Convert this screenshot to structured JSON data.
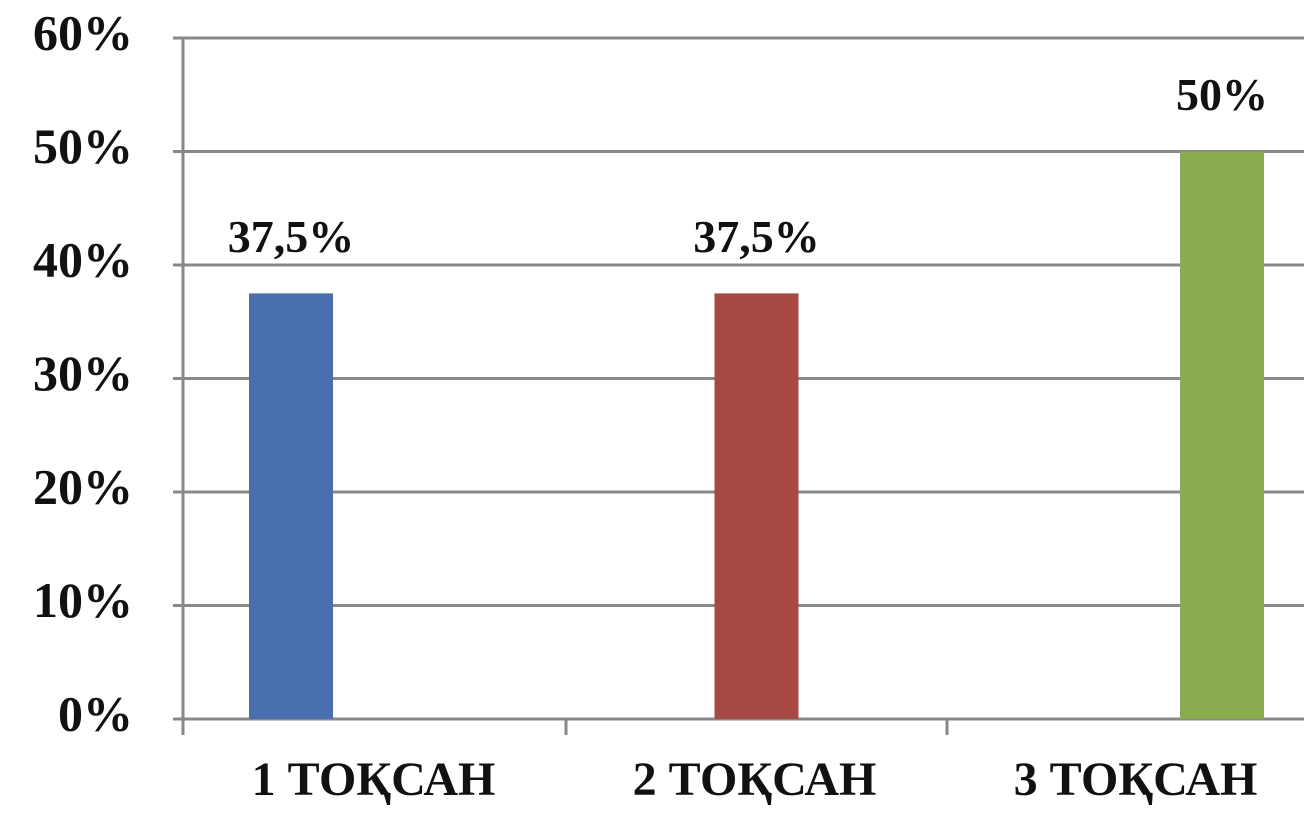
{
  "chart_data": {
    "type": "bar",
    "categories": [
      "1 ТОҚСАН",
      "2 ТОҚСАН",
      "3 ТОҚСАН"
    ],
    "values": [
      37.5,
      37.5,
      50
    ],
    "value_labels": [
      "37,5%",
      "37,5%",
      "50%"
    ],
    "colors": [
      "#4a6fae",
      "#a84a44",
      "#8aab4f"
    ],
    "ylim": [
      0,
      60
    ],
    "yticks": [
      {
        "value": 0,
        "label": "0%"
      },
      {
        "value": 10,
        "label": "10%"
      },
      {
        "value": 20,
        "label": "20%"
      },
      {
        "value": 30,
        "label": "30%"
      },
      {
        "value": 40,
        "label": "40%"
      },
      {
        "value": 50,
        "label": "50%"
      },
      {
        "value": 60,
        "label": "60%"
      }
    ],
    "grid": true
  }
}
